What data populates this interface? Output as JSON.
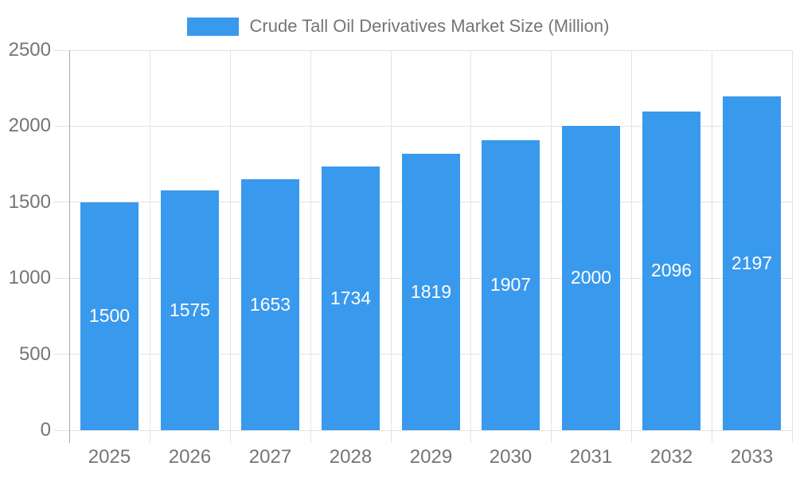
{
  "legend": {
    "label": "Crude Tall Oil Derivatives Market Size (Million)"
  },
  "chart_data": {
    "type": "bar",
    "title": "Crude Tall Oil Derivatives Market Size (Million)",
    "categories": [
      "2025",
      "2026",
      "2027",
      "2028",
      "2029",
      "2030",
      "2031",
      "2032",
      "2033"
    ],
    "values": [
      1500,
      1575,
      1653,
      1734,
      1819,
      1907,
      2000,
      2096,
      2197
    ],
    "xlabel": "",
    "ylabel": "",
    "ylim": [
      0,
      2500
    ],
    "y_ticks": [
      0,
      500,
      1000,
      1500,
      2000,
      2500
    ],
    "grid": true,
    "legend_position": "top",
    "colors": {
      "bar": "#3999EC",
      "bar_label": "#FFFFFF",
      "axis_text": "#757575",
      "gridline": "#E3E3E3",
      "axis_line": "#AAAAAA",
      "background": "#FFFFFF"
    }
  }
}
